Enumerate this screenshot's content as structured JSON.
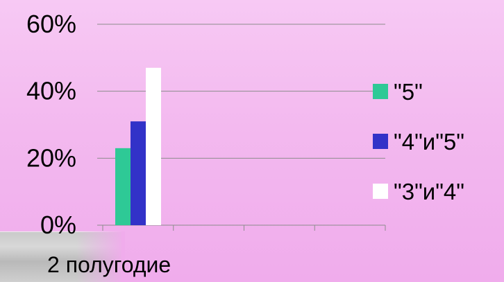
{
  "chart_data": {
    "type": "bar",
    "categories": [
      "2 полугодие"
    ],
    "series": [
      {
        "name": "\"5\"",
        "values": [
          23
        ]
      },
      {
        "name": "\"4\"и\"5\"",
        "values": [
          31
        ]
      },
      {
        "name": "\"3\"и\"4\"",
        "values": [
          47
        ]
      }
    ],
    "yticks": [
      "0%",
      "20%",
      "40%",
      "60%"
    ],
    "ylim": [
      0,
      60
    ],
    "grid": true,
    "legend_position": "right"
  },
  "colors": {
    "series": [
      "#2ec996",
      "#3232c8",
      "#ffffff"
    ],
    "gridline": "#8c8c8c",
    "axis": "#8c8c8c"
  }
}
